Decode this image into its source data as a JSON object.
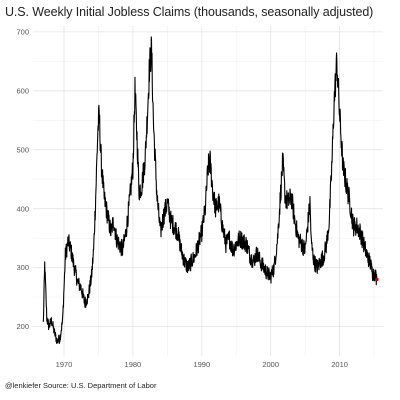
{
  "chart_data": {
    "type": "line",
    "title": "U.S. Weekly Initial Jobless Claims (thousands, seasonally adjusted)",
    "caption": "@lenkiefer Source: U.S. Department of Labor",
    "xlabel": "",
    "ylabel": "",
    "xlim": [
      1965.5,
      2016.3
    ],
    "ylim": [
      150,
      710
    ],
    "x_ticks": [
      1970,
      1980,
      1990,
      2000,
      2010
    ],
    "y_ticks": [
      200,
      300,
      400,
      500,
      600,
      700
    ],
    "grid": true,
    "line_color": "#000000",
    "highlight_color": "#cc0000",
    "series": [
      {
        "x": [
          1967.0,
          1967.2,
          1967.5,
          1967.8,
          1968.2,
          1968.6,
          1969.0,
          1969.4,
          1969.8,
          1970.2,
          1970.6,
          1971.0,
          1971.5,
          1972.0,
          1972.5,
          1973.0,
          1973.5,
          1974.0,
          1974.3,
          1974.6,
          1974.9,
          1975.1,
          1975.4,
          1975.8,
          1976.3,
          1976.8,
          1977.2,
          1977.6,
          1978.0,
          1978.5,
          1979.0,
          1979.5,
          1980.0,
          1980.3,
          1980.6,
          1980.9,
          1981.3,
          1981.8,
          1982.1,
          1982.4,
          1982.7,
          1983.0,
          1983.5,
          1984.0,
          1984.5,
          1985.0,
          1985.5,
          1986.0,
          1986.5,
          1987.0,
          1987.5,
          1988.0,
          1988.5,
          1989.0,
          1989.5,
          1990.0,
          1990.5,
          1990.9,
          1991.2,
          1991.6,
          1992.0,
          1992.5,
          1993.0,
          1993.5,
          1994.0,
          1994.5,
          1995.0,
          1995.5,
          1996.0,
          1996.5,
          1997.0,
          1997.5,
          1998.0,
          1998.5,
          1999.0,
          1999.5,
          2000.0,
          2000.5,
          2001.0,
          2001.4,
          2001.75,
          2002.1,
          2002.5,
          2003.0,
          2003.5,
          2004.0,
          2004.5,
          2005.0,
          2005.7,
          2005.9,
          2006.3,
          2006.8,
          2007.2,
          2007.7,
          2008.1,
          2008.5,
          2008.9,
          2009.2,
          2009.6,
          2010.0,
          2010.5,
          2011.0,
          2011.5,
          2012.0,
          2012.5,
          2013.0,
          2013.5,
          2014.0,
          2014.4,
          2014.8,
          2015.1,
          2015.4
        ],
        "y": [
          205,
          305,
          215,
          200,
          210,
          190,
          175,
          180,
          210,
          320,
          345,
          330,
          300,
          275,
          265,
          240,
          250,
          285,
          330,
          420,
          530,
          560,
          480,
          420,
          390,
          360,
          380,
          350,
          340,
          330,
          360,
          410,
          470,
          600,
          520,
          430,
          440,
          490,
          560,
          640,
          670,
          540,
          420,
          360,
          390,
          410,
          380,
          370,
          360,
          330,
          310,
          300,
          310,
          320,
          340,
          360,
          400,
          470,
          480,
          430,
          400,
          410,
          370,
          340,
          350,
          330,
          340,
          350,
          345,
          340,
          320,
          310,
          325,
          310,
          300,
          290,
          285,
          300,
          350,
          420,
          480,
          420,
          410,
          420,
          380,
          350,
          340,
          330,
          410,
          340,
          310,
          300,
          310,
          320,
          340,
          380,
          480,
          580,
          650,
          560,
          470,
          440,
          410,
          370,
          370,
          360,
          340,
          320,
          310,
          290,
          290,
          280
        ]
      }
    ],
    "highlight_point": {
      "x": 2015.4,
      "y": 280
    }
  }
}
